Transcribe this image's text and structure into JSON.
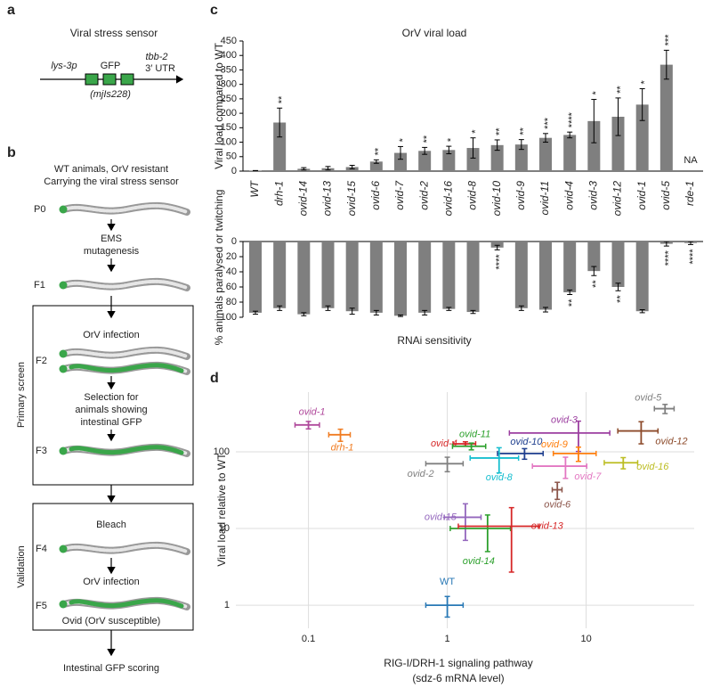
{
  "panel_a": {
    "label": "a",
    "title": "Viral stress sensor",
    "promoter": "lys-3p",
    "reporter": "GFP",
    "allele": "(mjIs228)",
    "utr": [
      "tbb-2",
      "3′ UTR"
    ]
  },
  "panel_b": {
    "label": "b",
    "intro": [
      "WT animals, OrV resistant",
      "Carrying the viral stress sensor"
    ],
    "generations": [
      "P0",
      "F1",
      "F2",
      "F3",
      "F4",
      "F5"
    ],
    "mutagenesis": [
      "EMS",
      "mutagenesis"
    ],
    "infection_1": "OrV infection",
    "selection": [
      "Selection for",
      "animals showing",
      "intestinal GFP"
    ],
    "primary_screen": "Primary screen",
    "bleach": "Bleach",
    "infection_2": "OrV infection",
    "outcome": "Ovid (OrV susceptible)",
    "validation": "Validation",
    "scoring": "Intestinal GFP scoring"
  },
  "panel_c": {
    "label": "c"
  },
  "panel_d": {
    "label": "d"
  },
  "chart_data": [
    {
      "type": "bar",
      "title": "OrV viral load",
      "ylabel": "Viral load compared to WT",
      "color": "#7f7f7f",
      "categories": [
        "WT",
        "drh-1",
        "ovid-14",
        "ovid-13",
        "ovid-15",
        "ovid-6",
        "ovid-7",
        "ovid-2",
        "ovid-16",
        "ovid-8",
        "ovid-10",
        "ovid-9",
        "ovid-11",
        "ovid-4",
        "ovid-3",
        "ovid-12",
        "ovid-1",
        "ovid-5",
        "rde-1"
      ],
      "values": [
        1,
        168,
        8,
        10,
        14,
        33,
        63,
        70,
        73,
        80,
        90,
        92,
        115,
        125,
        173,
        188,
        230,
        368,
        null
      ],
      "errors": [
        1,
        50,
        4,
        6,
        6,
        6,
        22,
        12,
        13,
        35,
        18,
        17,
        15,
        10,
        75,
        65,
        55,
        50,
        null
      ],
      "annotations": [
        null,
        "**",
        null,
        null,
        null,
        "**",
        "*",
        "**",
        "*",
        "*",
        "**",
        "**",
        "***",
        "****",
        "*",
        "**",
        "*",
        "***",
        "NA"
      ],
      "ylim": [
        0,
        450
      ],
      "yticks": [
        0,
        50,
        100,
        150,
        200,
        250,
        300,
        350,
        400,
        450
      ]
    },
    {
      "type": "bar",
      "ylabel": "% animals paralysed or twitching",
      "xlabel": "RNAi sensitivity",
      "color": "#7f7f7f",
      "inverted": true,
      "values": [
        94,
        88,
        96,
        88,
        92,
        94,
        98,
        94,
        89,
        93,
        8,
        88,
        90,
        67,
        39,
        60,
        92,
        3,
        2
      ],
      "errors": [
        2,
        3,
        2,
        3,
        4,
        3,
        1,
        3,
        2,
        2,
        3,
        3,
        3,
        3,
        6,
        5,
        2,
        3,
        2
      ],
      "annotations": [
        null,
        null,
        null,
        null,
        null,
        null,
        null,
        null,
        null,
        null,
        "****",
        null,
        null,
        "**",
        "**",
        "**",
        null,
        "****",
        "****"
      ],
      "ylim": [
        0,
        100
      ],
      "yticks": [
        0,
        20,
        40,
        60,
        80,
        100
      ]
    },
    {
      "type": "scatter",
      "xlabel": [
        "RIG-I/DRH-1 signaling pathway",
        "(sdz-6 mRNA level)"
      ],
      "ylabel": "Viral load relative to WT",
      "xscale": "log",
      "yscale": "log",
      "grid": true,
      "xlim": [
        0.03,
        60
      ],
      "xticks": [
        0.1,
        1,
        10
      ],
      "ylim": [
        0.5,
        600
      ],
      "yticks": [
        1,
        10,
        100
      ],
      "series": [
        {
          "name": "WT",
          "color": "#2878b5",
          "x": 1,
          "y": 1,
          "xerr": 0.3,
          "yerr": 0.3
        },
        {
          "name": "ovid-1",
          "color": "#b04a9c",
          "x": 0.1,
          "y": 224,
          "xerr": 0.02,
          "yerr": 25
        },
        {
          "name": "drh-1",
          "color": "#f07c22",
          "x": 0.17,
          "y": 167,
          "xerr": 0.03,
          "yerr": 30
        },
        {
          "name": "ovid-4",
          "color": "#d62728",
          "x": 1.35,
          "y": 127,
          "xerr": 0.25,
          "yerr": 8
        },
        {
          "name": "ovid-11",
          "color": "#2ca02c",
          "x": 1.49,
          "y": 118,
          "xerr": 0.4,
          "yerr": 12
        },
        {
          "name": "ovid-10",
          "color": "#1f3f8f",
          "x": 3.6,
          "y": 95,
          "xerr": 1.3,
          "yerr": 15
        },
        {
          "name": "ovid-2",
          "color": "#808080",
          "x": 1.0,
          "y": 70,
          "xerr": 0.3,
          "yerr": 15
        },
        {
          "name": "ovid-8",
          "color": "#17becf",
          "x": 2.36,
          "y": 83,
          "xerr": 0.9,
          "yerr": 30
        },
        {
          "name": "ovid-3",
          "color": "#9c3fa0",
          "x": 8.8,
          "y": 176,
          "xerr": 6,
          "yerr": 75
        },
        {
          "name": "ovid-9",
          "color": "#ff7f0e",
          "x": 8.8,
          "y": 95,
          "xerr": 3,
          "yerr": 20
        },
        {
          "name": "ovid-12",
          "color": "#8c4a2a",
          "x": 24.9,
          "y": 187,
          "xerr": 8,
          "yerr": 60
        },
        {
          "name": "ovid-5",
          "color": "#7f7f7f",
          "x": 37,
          "y": 365,
          "xerr": 6,
          "yerr": 50
        },
        {
          "name": "ovid-7",
          "color": "#e377c2",
          "x": 7.1,
          "y": 65,
          "xerr": 3,
          "yerr": 20
        },
        {
          "name": "ovid-16",
          "color": "#bcbd22",
          "x": 18.5,
          "y": 72,
          "xerr": 5,
          "yerr": 12
        },
        {
          "name": "ovid-6",
          "color": "#8c564b",
          "x": 6.2,
          "y": 32,
          "xerr": 0.5,
          "yerr": 8
        },
        {
          "name": "ovid-15",
          "color": "#9467bd",
          "x": 1.35,
          "y": 14,
          "xerr": 0.4,
          "yerr": 7
        },
        {
          "name": "ovid-14",
          "color": "#2ca02c",
          "x": 1.95,
          "y": 10,
          "xerr": 0.9,
          "yerr": 5
        },
        {
          "name": "ovid-13",
          "color": "#d62728",
          "x": 2.9,
          "y": 10.7,
          "xerr": 1.7,
          "yerr": 8
        }
      ]
    }
  ]
}
